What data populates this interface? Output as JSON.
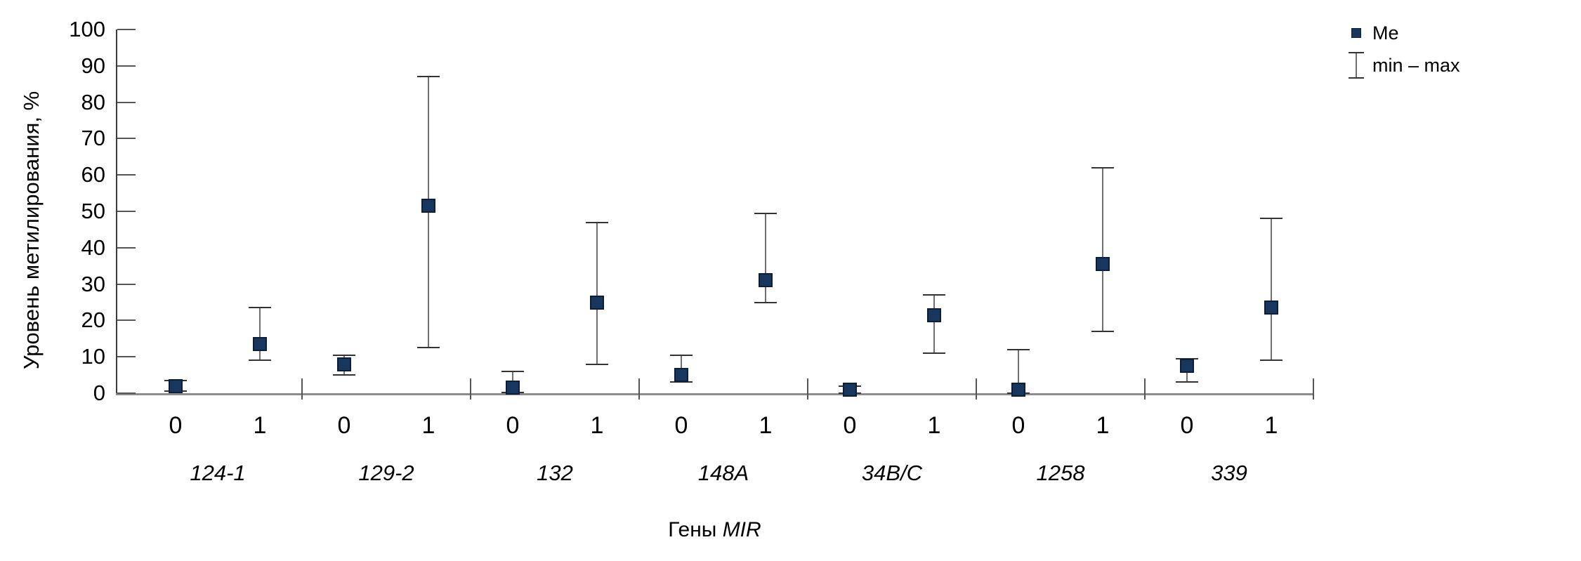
{
  "figure": {
    "y_axis_label": "Уровень метилирования, %",
    "x_axis_title_regular": "Гены ",
    "x_axis_title_italic": "MIR",
    "legend": {
      "me_label": "Me",
      "minmax_label": "min – max"
    }
  },
  "colors": {
    "marker_fill": "#17375e",
    "marker_border": "#0d1f38",
    "whisker_line": "#707070",
    "whisker_cap": "#333333",
    "y_axis_line": "#3c3c3c",
    "x_axis_line": "#8c8c8c",
    "tick": "#555555",
    "text": "#000000"
  },
  "chart_data": {
    "type": "scatter",
    "title": "",
    "ylabel": "Уровень метилирования, %",
    "xlabel": "Гены MIR",
    "ylim": [
      0,
      100
    ],
    "ytick_step": 10,
    "grid": false,
    "legend_entries": [
      "Me",
      "min – max"
    ],
    "legend_position": "top-right",
    "marker_meaning": "Me (median methylation level)",
    "whisker_meaning": "min – max range",
    "categories": [
      "124-1",
      "129-2",
      "132",
      "148A",
      "34B/C",
      "1258",
      "339"
    ],
    "subcategories": [
      "0",
      "1"
    ],
    "groups": [
      {
        "gene": "124-1",
        "points": [
          {
            "x": "0",
            "me": 2,
            "min": 0.5,
            "max": 3.5
          },
          {
            "x": "1",
            "me": 13.5,
            "min": 9,
            "max": 23.5
          }
        ]
      },
      {
        "gene": "129-2",
        "points": [
          {
            "x": "0",
            "me": 8,
            "min": 5,
            "max": 10.5
          },
          {
            "x": "1",
            "me": 51.5,
            "min": 12.5,
            "max": 87
          }
        ]
      },
      {
        "gene": "132",
        "points": [
          {
            "x": "0",
            "me": 1.5,
            "min": 0.2,
            "max": 6
          },
          {
            "x": "1",
            "me": 25,
            "min": 8,
            "max": 47
          }
        ]
      },
      {
        "gene": "148A",
        "points": [
          {
            "x": "0",
            "me": 5,
            "min": 3,
            "max": 10.5
          },
          {
            "x": "1",
            "me": 31,
            "min": 25,
            "max": 49.5
          }
        ]
      },
      {
        "gene": "34B/C",
        "points": [
          {
            "x": "0",
            "me": 1,
            "min": 0,
            "max": 2
          },
          {
            "x": "1",
            "me": 21.5,
            "min": 11,
            "max": 27
          }
        ]
      },
      {
        "gene": "1258",
        "points": [
          {
            "x": "0",
            "me": 1,
            "min": 0,
            "max": 12
          },
          {
            "x": "1",
            "me": 35.5,
            "min": 17,
            "max": 62
          }
        ]
      },
      {
        "gene": "339",
        "points": [
          {
            "x": "0",
            "me": 7.5,
            "min": 3,
            "max": 9.5
          },
          {
            "x": "1",
            "me": 23.5,
            "min": 9,
            "max": 48
          }
        ]
      }
    ]
  }
}
